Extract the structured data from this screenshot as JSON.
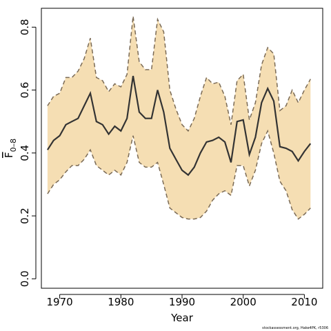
{
  "chart_data": {
    "type": "line",
    "xlabel": "Year",
    "ylabel_main": "F",
    "ylabel_sub": "0–8",
    "xlim": [
      1967,
      2013
    ],
    "ylim": [
      -0.03,
      0.86
    ],
    "x_ticks": [
      1970,
      1980,
      1990,
      2000,
      2010
    ],
    "x_tick_labels": [
      "1970",
      "1980",
      "1990",
      "2000",
      "2010"
    ],
    "y_ticks": [
      0.0,
      0.2,
      0.4,
      0.6,
      0.8
    ],
    "y_tick_labels": [
      "0.0",
      "0.2",
      "0.4",
      "0.6",
      "0.8"
    ],
    "source_note": "stockassessment.org, Hake4PK, r5306",
    "colors": {
      "band": "#f5deb3",
      "band_edge": "#7a6a55",
      "line": "#333333",
      "axis": "#000000"
    },
    "x": [
      1968,
      1969,
      1970,
      1971,
      1972,
      1973,
      1974,
      1975,
      1976,
      1977,
      1978,
      1979,
      1980,
      1981,
      1982,
      1983,
      1984,
      1985,
      1986,
      1987,
      1988,
      1989,
      1990,
      1991,
      1992,
      1993,
      1994,
      1995,
      1996,
      1997,
      1998,
      1999,
      2000,
      2001,
      2002,
      2003,
      2004,
      2005,
      2006,
      2007,
      2008,
      2009,
      2010,
      2011
    ],
    "series": [
      {
        "role": "estimate",
        "values": [
          0.41,
          0.44,
          0.455,
          0.49,
          0.5,
          0.51,
          0.55,
          0.59,
          0.5,
          0.49,
          0.46,
          0.485,
          0.47,
          0.51,
          0.645,
          0.53,
          0.51,
          0.51,
          0.6,
          0.53,
          0.415,
          0.38,
          0.345,
          0.33,
          0.355,
          0.4,
          0.435,
          0.44,
          0.45,
          0.435,
          0.37,
          0.5,
          0.505,
          0.395,
          0.45,
          0.56,
          0.605,
          0.565,
          0.42,
          0.415,
          0.405,
          0.375,
          0.405,
          0.43
        ]
      },
      {
        "role": "upper",
        "values": [
          0.55,
          0.58,
          0.59,
          0.64,
          0.64,
          0.66,
          0.7,
          0.765,
          0.64,
          0.63,
          0.595,
          0.62,
          0.61,
          0.65,
          0.835,
          0.69,
          0.665,
          0.665,
          0.825,
          0.785,
          0.6,
          0.54,
          0.49,
          0.47,
          0.51,
          0.58,
          0.64,
          0.62,
          0.625,
          0.58,
          0.49,
          0.63,
          0.65,
          0.505,
          0.56,
          0.68,
          0.735,
          0.715,
          0.535,
          0.55,
          0.6,
          0.56,
          0.6,
          0.635
        ]
      },
      {
        "role": "lower",
        "values": [
          0.27,
          0.3,
          0.315,
          0.34,
          0.36,
          0.36,
          0.38,
          0.41,
          0.36,
          0.345,
          0.33,
          0.345,
          0.33,
          0.37,
          0.455,
          0.37,
          0.355,
          0.355,
          0.37,
          0.3,
          0.225,
          0.21,
          0.195,
          0.19,
          0.19,
          0.195,
          0.215,
          0.25,
          0.27,
          0.28,
          0.265,
          0.36,
          0.36,
          0.295,
          0.345,
          0.43,
          0.47,
          0.4,
          0.31,
          0.28,
          0.22,
          0.19,
          0.205,
          0.225
        ]
      }
    ]
  }
}
